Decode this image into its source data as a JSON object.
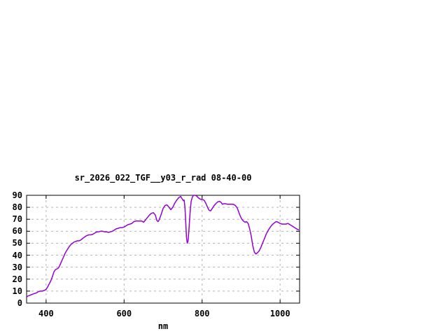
{
  "window": {
    "background": "#ffffff"
  },
  "chart_data": {
    "type": "line",
    "title": "sr_2026_022_TGF__y03_r_rad 08-40-00",
    "xlabel": "nm",
    "ylabel": "",
    "xlim": [
      350,
      1050
    ],
    "ylim": [
      0,
      90
    ],
    "x_ticks": [
      400,
      600,
      800,
      1000
    ],
    "y_ticks": [
      0,
      10,
      20,
      30,
      40,
      50,
      60,
      70,
      80,
      90
    ],
    "grid": true,
    "legend": "none",
    "colors": {
      "line": "#9400d3",
      "grid": "#b4b4b4",
      "axis": "#000000",
      "text": "#000000"
    },
    "series": [
      {
        "name": "sr_2026_022_TGF__y03_r_rad",
        "color": "#9400d3",
        "points": [
          [
            350,
            5
          ],
          [
            354,
            6
          ],
          [
            358,
            6.5
          ],
          [
            362,
            7
          ],
          [
            366,
            7.5
          ],
          [
            370,
            8
          ],
          [
            375,
            8.5
          ],
          [
            380,
            9.5
          ],
          [
            385,
            10
          ],
          [
            390,
            10
          ],
          [
            395,
            10.5
          ],
          [
            400,
            11.5
          ],
          [
            404,
            13.5
          ],
          [
            408,
            16
          ],
          [
            412,
            18.5
          ],
          [
            416,
            22
          ],
          [
            420,
            26
          ],
          [
            424,
            28
          ],
          [
            428,
            28.5
          ],
          [
            432,
            29.5
          ],
          [
            436,
            32
          ],
          [
            440,
            35
          ],
          [
            444,
            38
          ],
          [
            448,
            41
          ],
          [
            452,
            43.5
          ],
          [
            456,
            45.5
          ],
          [
            460,
            47.5
          ],
          [
            464,
            49
          ],
          [
            468,
            50
          ],
          [
            472,
            51
          ],
          [
            476,
            51.5
          ],
          [
            480,
            52
          ],
          [
            484,
            52
          ],
          [
            488,
            52.5
          ],
          [
            492,
            53.5
          ],
          [
            496,
            54.5
          ],
          [
            500,
            55.5
          ],
          [
            505,
            56.5
          ],
          [
            510,
            57
          ],
          [
            515,
            57
          ],
          [
            520,
            57.5
          ],
          [
            525,
            58.5
          ],
          [
            530,
            59.5
          ],
          [
            535,
            59.5
          ],
          [
            540,
            60
          ],
          [
            545,
            60
          ],
          [
            550,
            59.5
          ],
          [
            555,
            59.5
          ],
          [
            560,
            59
          ],
          [
            565,
            59.5
          ],
          [
            570,
            60
          ],
          [
            575,
            61
          ],
          [
            580,
            62
          ],
          [
            585,
            62.5
          ],
          [
            590,
            63
          ],
          [
            595,
            63
          ],
          [
            600,
            63.5
          ],
          [
            605,
            64.5
          ],
          [
            610,
            65.5
          ],
          [
            615,
            66
          ],
          [
            620,
            66.5
          ],
          [
            625,
            68
          ],
          [
            630,
            68.5
          ],
          [
            635,
            68.5
          ],
          [
            640,
            68.5
          ],
          [
            645,
            68.5
          ],
          [
            650,
            67.5
          ],
          [
            655,
            69.5
          ],
          [
            660,
            71.5
          ],
          [
            665,
            73.5
          ],
          [
            670,
            75
          ],
          [
            675,
            75.5
          ],
          [
            680,
            73.5
          ],
          [
            684,
            69
          ],
          [
            687,
            68
          ],
          [
            690,
            69.5
          ],
          [
            695,
            74
          ],
          [
            700,
            79
          ],
          [
            705,
            81.5
          ],
          [
            710,
            82
          ],
          [
            715,
            80
          ],
          [
            720,
            78
          ],
          [
            725,
            80
          ],
          [
            730,
            83.5
          ],
          [
            735,
            86
          ],
          [
            740,
            88
          ],
          [
            745,
            89
          ],
          [
            749,
            87
          ],
          [
            752,
            85.5
          ],
          [
            754,
            86
          ],
          [
            756,
            80
          ],
          [
            758,
            68
          ],
          [
            760,
            55
          ],
          [
            762,
            50
          ],
          [
            764,
            52
          ],
          [
            766,
            60
          ],
          [
            768,
            70
          ],
          [
            770,
            79
          ],
          [
            772,
            85
          ],
          [
            775,
            88.5
          ],
          [
            778,
            90
          ],
          [
            782,
            90
          ],
          [
            786,
            89.5
          ],
          [
            790,
            88
          ],
          [
            794,
            87
          ],
          [
            798,
            86.5
          ],
          [
            802,
            86.5
          ],
          [
            806,
            85.5
          ],
          [
            810,
            83
          ],
          [
            814,
            80
          ],
          [
            818,
            77.5
          ],
          [
            822,
            77
          ],
          [
            826,
            79
          ],
          [
            830,
            81
          ],
          [
            835,
            83
          ],
          [
            840,
            84.5
          ],
          [
            845,
            85
          ],
          [
            849,
            84
          ],
          [
            852,
            82.5
          ],
          [
            856,
            83
          ],
          [
            860,
            83
          ],
          [
            865,
            82.5
          ],
          [
            870,
            82.5
          ],
          [
            875,
            82.5
          ],
          [
            880,
            82.5
          ],
          [
            885,
            81.5
          ],
          [
            890,
            79.5
          ],
          [
            894,
            76
          ],
          [
            898,
            72.5
          ],
          [
            902,
            70
          ],
          [
            906,
            68.5
          ],
          [
            910,
            67.5
          ],
          [
            914,
            68
          ],
          [
            918,
            66.5
          ],
          [
            922,
            62
          ],
          [
            926,
            56
          ],
          [
            930,
            48
          ],
          [
            934,
            42.5
          ],
          [
            938,
            41
          ],
          [
            942,
            42
          ],
          [
            946,
            43.5
          ],
          [
            950,
            46
          ],
          [
            955,
            50
          ],
          [
            960,
            54
          ],
          [
            965,
            58
          ],
          [
            970,
            61
          ],
          [
            975,
            63.5
          ],
          [
            980,
            65.5
          ],
          [
            985,
            67
          ],
          [
            990,
            68
          ],
          [
            995,
            67.5
          ],
          [
            1000,
            66.5
          ],
          [
            1005,
            66
          ],
          [
            1010,
            66
          ],
          [
            1015,
            66
          ],
          [
            1020,
            66.5
          ],
          [
            1025,
            65.5
          ],
          [
            1030,
            64.5
          ],
          [
            1035,
            63.5
          ],
          [
            1040,
            62.5
          ],
          [
            1045,
            61.5
          ],
          [
            1048,
            61
          ]
        ]
      }
    ]
  }
}
